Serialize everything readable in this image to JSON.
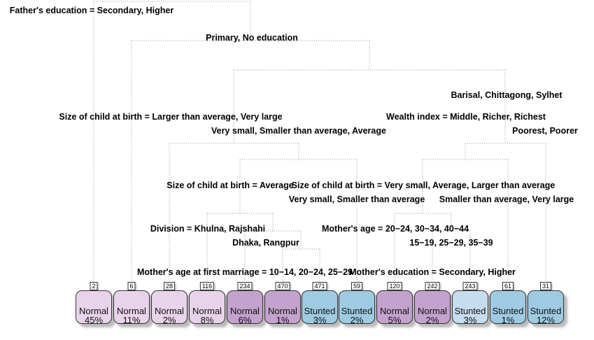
{
  "colors": {
    "normal_light": "#e8d4ea",
    "normal_dark": "#c3a2cd",
    "stunted": "#9ecbe2",
    "stunted_light": "#c6ddf0"
  },
  "splits": [
    {
      "id": "root-left",
      "text": "Father's education = Secondary, Higher"
    },
    {
      "id": "root-right",
      "text": "Primary, No education"
    },
    {
      "id": "n7-right",
      "text": "Barisal, Chittagong, Sylhet"
    },
    {
      "id": "n14-left",
      "text": "Size of child at birth = Larger than average, Very large"
    },
    {
      "id": "n15-left",
      "text": "Wealth index = Middle, Richer, Richest"
    },
    {
      "id": "n14-right",
      "text": "Very small, Smaller than average, Average"
    },
    {
      "id": "n15-right",
      "text": "Poorest, Poorer"
    },
    {
      "id": "n29-left",
      "text": "Size of child at birth = Average"
    },
    {
      "id": "n30-left",
      "text": "Size of child at birth = Very small, Average, Larger than average"
    },
    {
      "id": "n29-right",
      "text": "Very small, Smaller than average"
    },
    {
      "id": "n30-right",
      "text": "Smaller than average, Very large"
    },
    {
      "id": "n58-left",
      "text": "Division = Khulna, Rajshahi"
    },
    {
      "id": "n60-left",
      "text": "Mother's age = 20−24, 30−34, 40−44"
    },
    {
      "id": "n58-right",
      "text": "Dhaka, Rangpur"
    },
    {
      "id": "n60-right",
      "text": "15−19, 25−29, 35−39"
    },
    {
      "id": "n117-left",
      "text": "Mother's age at first marriage = 10−14, 20−24, 25−29"
    },
    {
      "id": "n121-left",
      "text": "Mother's education = Secondary, Higher"
    }
  ],
  "leaves": [
    {
      "node": "2",
      "class": "Normal",
      "pct": "45%",
      "shade": "normal_light"
    },
    {
      "node": "6",
      "class": "Normal",
      "pct": "11%",
      "shade": "normal_light"
    },
    {
      "node": "28",
      "class": "Normal",
      "pct": "2%",
      "shade": "normal_light"
    },
    {
      "node": "116",
      "class": "Normal",
      "pct": "8%",
      "shade": "normal_light"
    },
    {
      "node": "234",
      "class": "Normal",
      "pct": "6%",
      "shade": "normal_dark"
    },
    {
      "node": "470",
      "class": "Normal",
      "pct": "1%",
      "shade": "normal_dark"
    },
    {
      "node": "471",
      "class": "Stunted",
      "pct": "3%",
      "shade": "stunted"
    },
    {
      "node": "59",
      "class": "Stunted",
      "pct": "2%",
      "shade": "stunted"
    },
    {
      "node": "120",
      "class": "Normal",
      "pct": "5%",
      "shade": "normal_dark"
    },
    {
      "node": "242",
      "class": "Normal",
      "pct": "2%",
      "shade": "normal_dark"
    },
    {
      "node": "243",
      "class": "Stunted",
      "pct": "3%",
      "shade": "stunted_light"
    },
    {
      "node": "61",
      "class": "Stunted",
      "pct": "1%",
      "shade": "stunted"
    },
    {
      "node": "31",
      "class": "Stunted",
      "pct": "12%",
      "shade": "stunted"
    }
  ]
}
